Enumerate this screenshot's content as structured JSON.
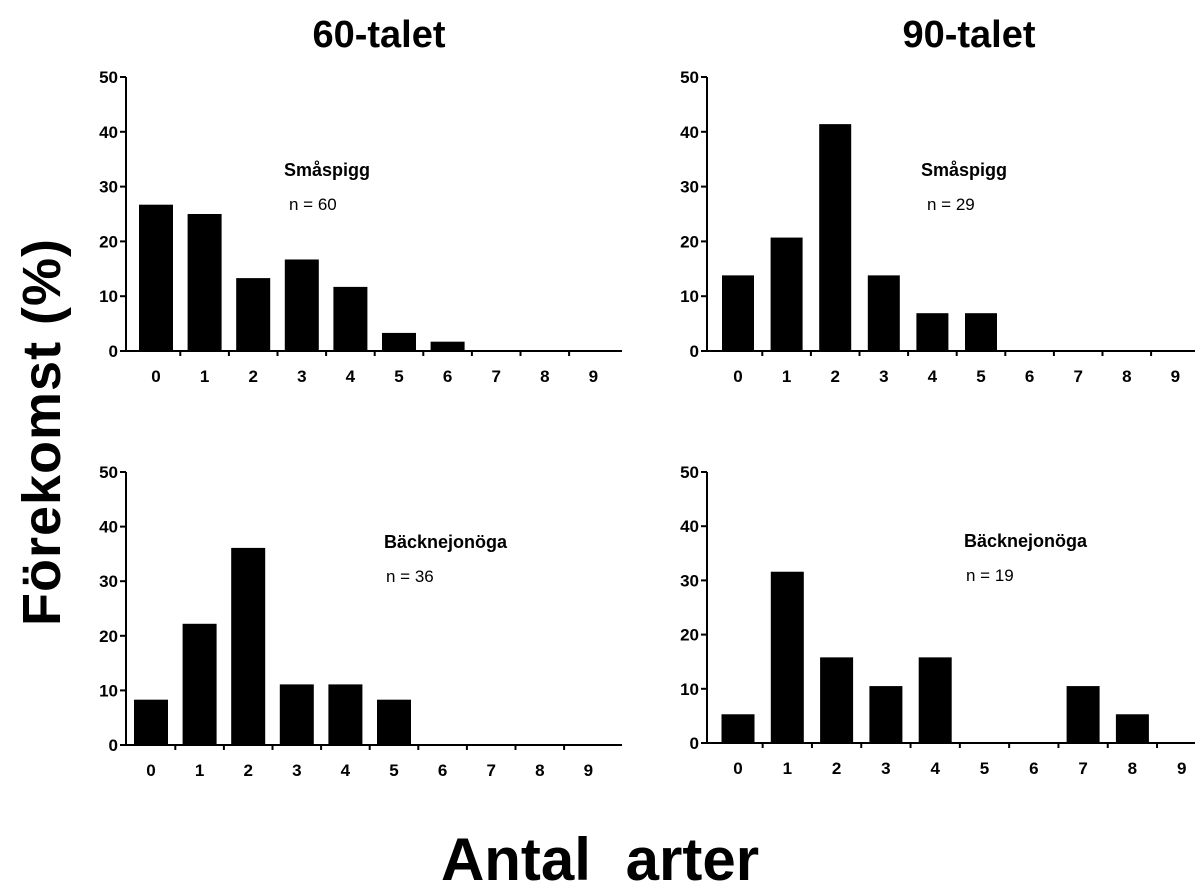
{
  "figure": {
    "col_titles": [
      "60-talet",
      "90-talet"
    ],
    "ylabel": "Förekomst (%)",
    "xlabel": "Antal arter"
  },
  "chart_data": [
    {
      "type": "bar",
      "title": "60-talet",
      "species": "Småspigg",
      "n_label": "n = 60",
      "categories": [
        "0",
        "1",
        "2",
        "3",
        "4",
        "5",
        "6",
        "7",
        "8",
        "9"
      ],
      "values": [
        26.7,
        25,
        13.3,
        16.7,
        11.7,
        3.3,
        1.7,
        0,
        0,
        0
      ],
      "ylim": [
        0,
        50
      ],
      "yticks": [
        0,
        10,
        20,
        30,
        40,
        50
      ],
      "xlabel": "Antal arter",
      "ylabel": "Förekomst (%)",
      "grid": false
    },
    {
      "type": "bar",
      "title": "90-talet",
      "species": "Småspigg",
      "n_label": "n = 29",
      "categories": [
        "0",
        "1",
        "2",
        "3",
        "4",
        "5",
        "6",
        "7",
        "8",
        "9"
      ],
      "values": [
        13.8,
        20.7,
        41.4,
        13.8,
        6.9,
        6.9,
        0,
        0,
        0,
        0
      ],
      "ylim": [
        0,
        50
      ],
      "yticks": [
        0,
        10,
        20,
        30,
        40,
        50
      ],
      "xlabel": "Antal arter",
      "ylabel": "Förekomst (%)",
      "grid": false
    },
    {
      "type": "bar",
      "title": "60-talet",
      "species": "Bäcknejonöga",
      "n_label": "n = 36",
      "categories": [
        "0",
        "1",
        "2",
        "3",
        "4",
        "5",
        "6",
        "7",
        "8",
        "9"
      ],
      "values": [
        8.3,
        22.2,
        36.1,
        11.1,
        11.1,
        8.3,
        0,
        0,
        0,
        0
      ],
      "ylim": [
        0,
        50
      ],
      "yticks": [
        0,
        10,
        20,
        30,
        40,
        50
      ],
      "xlabel": "Antal arter",
      "ylabel": "Förekomst (%)",
      "grid": false
    },
    {
      "type": "bar",
      "title": "90-talet",
      "species": "Bäcknejonöga",
      "n_label": "n = 19",
      "categories": [
        "0",
        "1",
        "2",
        "3",
        "4",
        "5",
        "6",
        "7",
        "8",
        "9"
      ],
      "values": [
        5.3,
        31.6,
        15.8,
        10.5,
        15.8,
        0,
        0,
        10.5,
        5.3,
        0
      ],
      "ylim": [
        0,
        50
      ],
      "yticks": [
        0,
        10,
        20,
        30,
        40,
        50
      ],
      "xlabel": "Antal arter",
      "ylabel": "Förekomst (%)",
      "grid": false
    }
  ]
}
